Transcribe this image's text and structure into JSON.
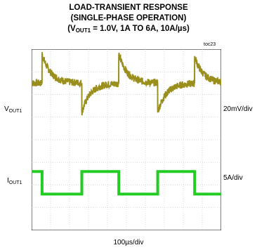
{
  "chart_data": {
    "type": "line",
    "title": {
      "line1": "LOAD-TRANSIENT RESPONSE",
      "line2": "(SINGLE-PHASE OPERATION)",
      "line3_prefix": "(V",
      "line3_sub": "OUT1",
      "line3_suffix": " = 1.0V, 1A TO 6A, 10A/µs)"
    },
    "figure_id": "toc23",
    "xlabel": "100µs/div",
    "grid": true,
    "divisions": {
      "x": 10,
      "y": 8
    },
    "channels": [
      {
        "name_main": "V",
        "name_sub": "OUT1",
        "scale": "20mV/div",
        "color": "#9a8f1c",
        "coupling": "AC",
        "baseline_div": 6.5,
        "transients": [
          {
            "time_div": 0.55,
            "peak_div": 1.3,
            "direction": "up"
          },
          {
            "time_div": 2.65,
            "peak_div": -1.3,
            "direction": "down"
          },
          {
            "time_div": 4.6,
            "peak_div": 1.3,
            "direction": "up"
          },
          {
            "time_div": 6.65,
            "peak_div": -1.3,
            "direction": "down"
          },
          {
            "time_div": 8.6,
            "peak_div": 1.2,
            "direction": "up"
          }
        ]
      },
      {
        "name_main": "I",
        "name_sub": "OUT1",
        "scale": "5A/div",
        "color": "#22cc22",
        "coupling": "DC",
        "levels_A": [
          1,
          6
        ],
        "zero_div": 1.4,
        "steps": [
          {
            "time_div": 0.0,
            "current_A": 6
          },
          {
            "time_div": 0.55,
            "current_A": 1
          },
          {
            "time_div": 2.65,
            "current_A": 6
          },
          {
            "time_div": 4.6,
            "current_A": 1
          },
          {
            "time_div": 6.65,
            "current_A": 6
          },
          {
            "time_div": 8.6,
            "current_A": 1
          },
          {
            "time_div": 10.0,
            "current_A": 1
          }
        ]
      }
    ]
  }
}
